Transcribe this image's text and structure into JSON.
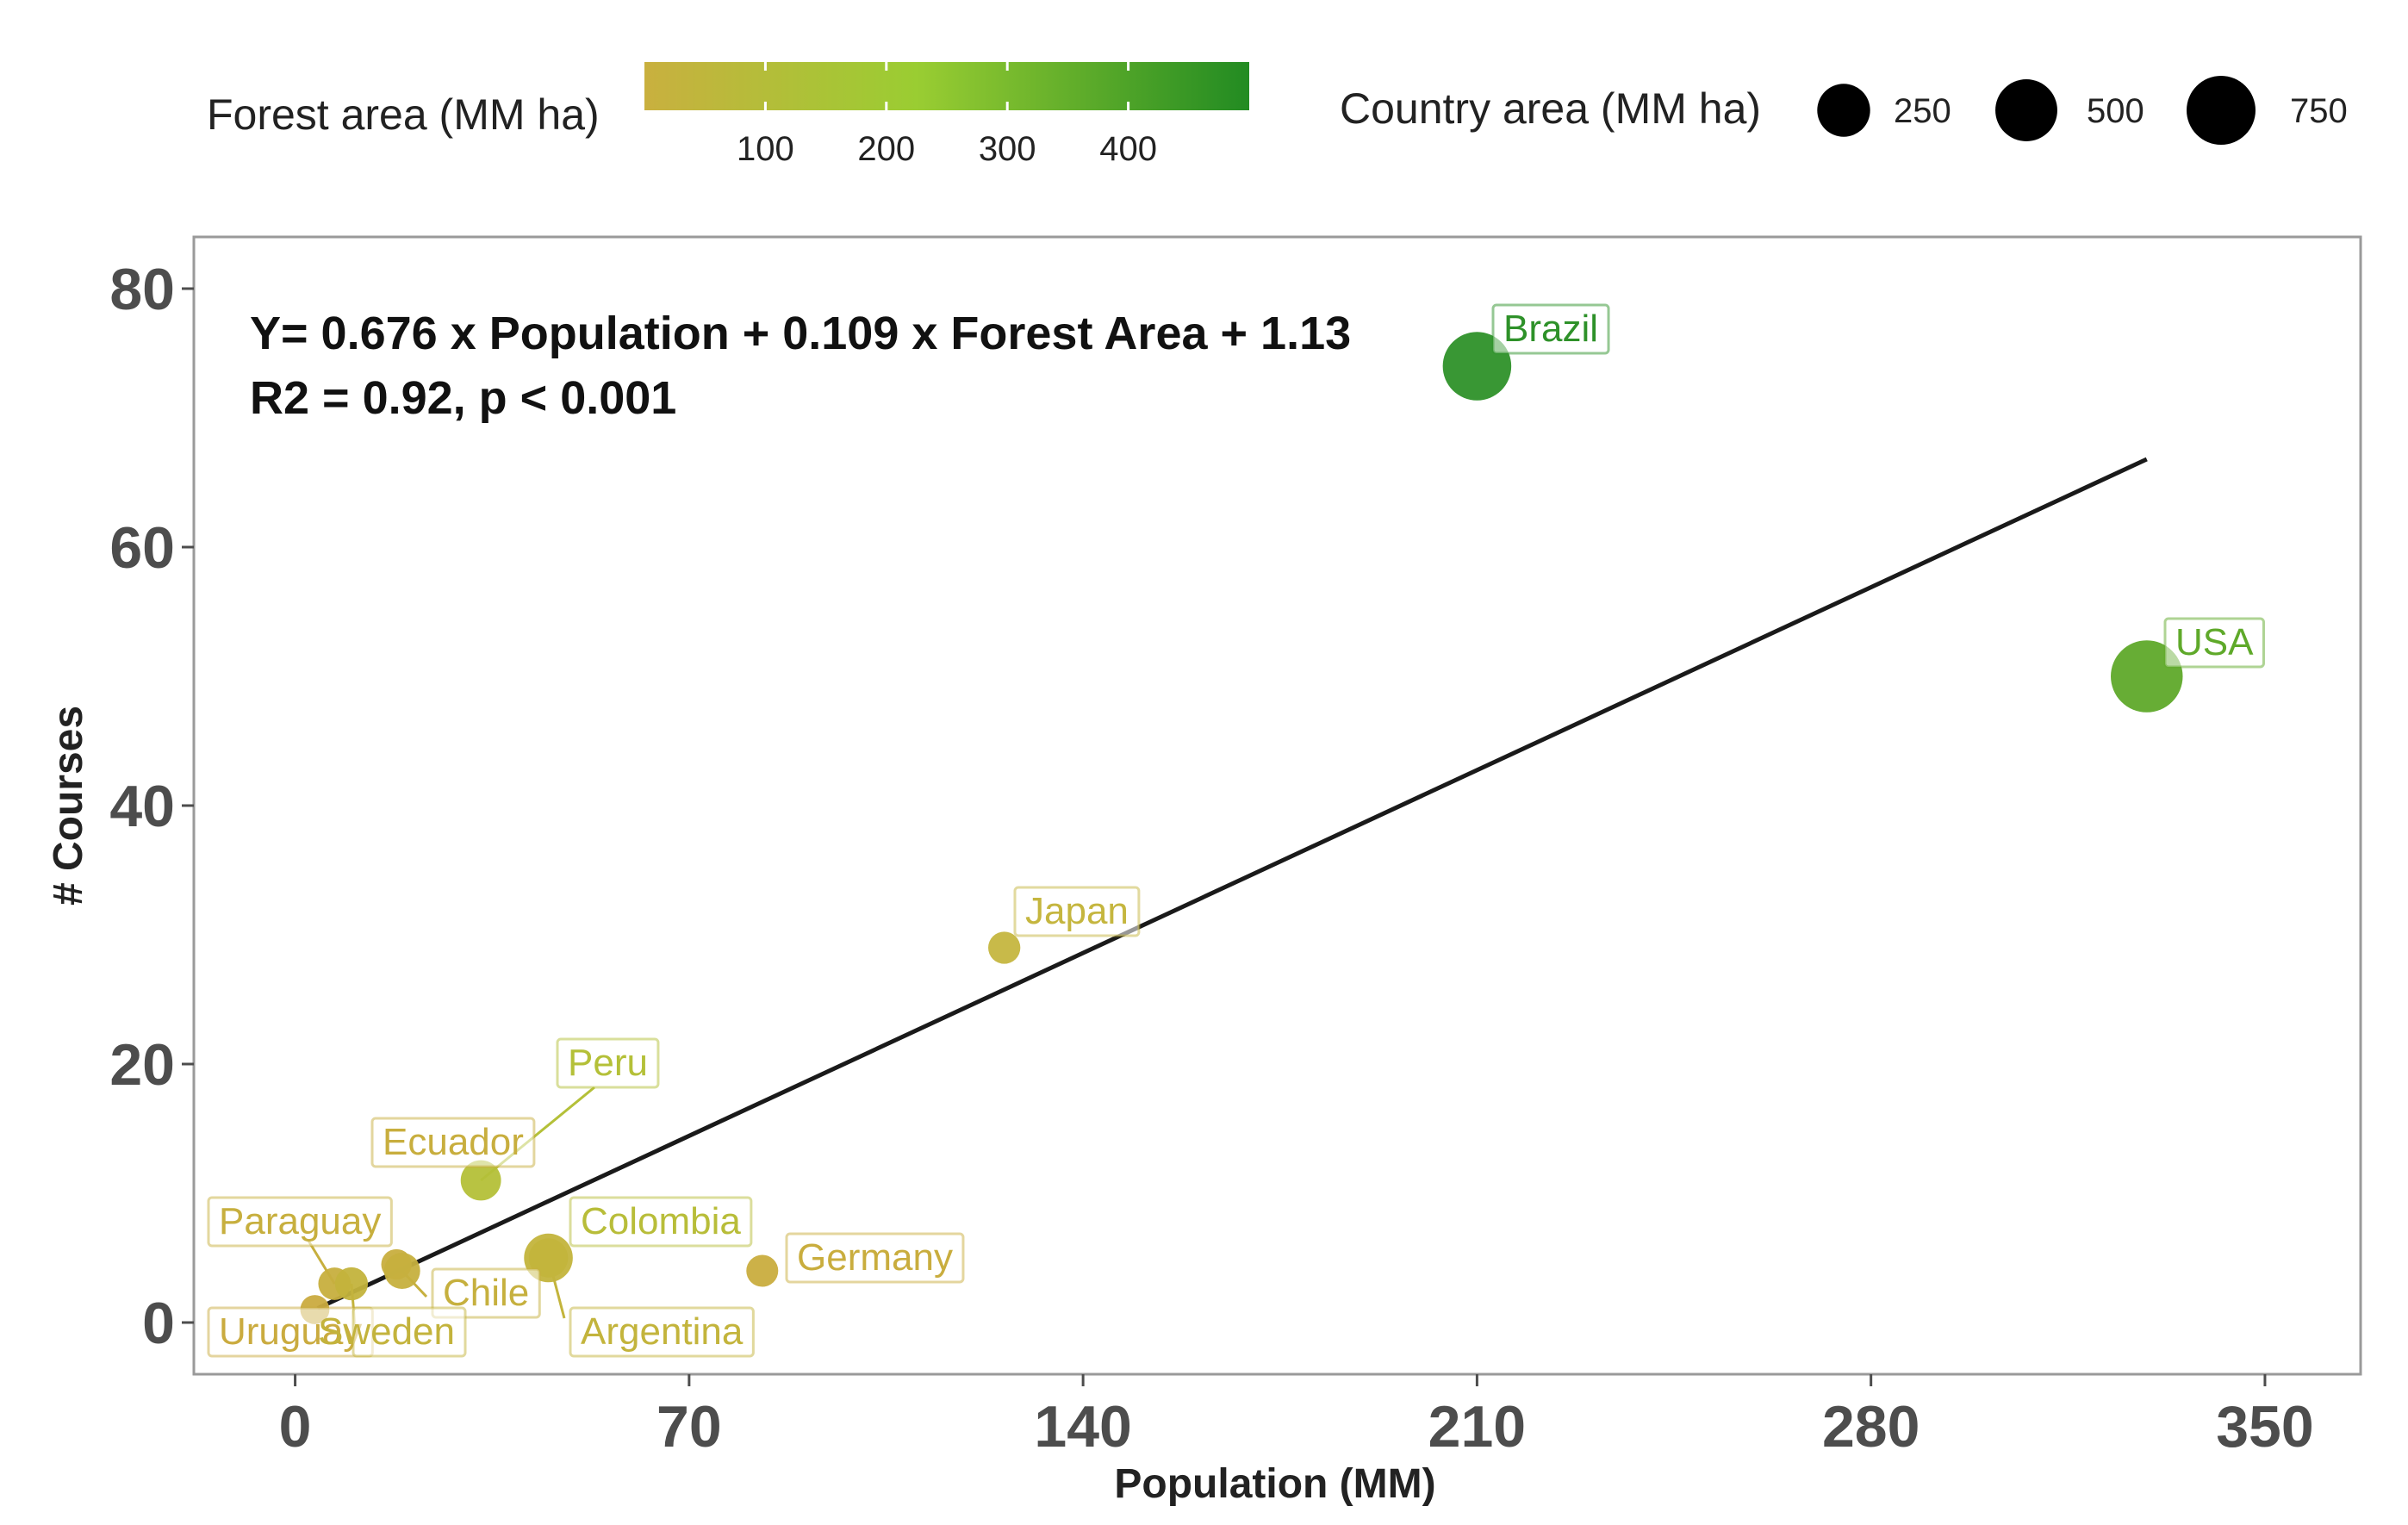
{
  "chart_data": {
    "type": "scatter",
    "title": "",
    "xlabel": "Population (MM)",
    "ylabel": "# Courses",
    "xlim": [
      -18,
      367
    ],
    "ylim": [
      -4,
      84
    ],
    "x_ticks": [
      0,
      70,
      140,
      210,
      280,
      350
    ],
    "y_ticks": [
      0,
      20,
      40,
      60,
      80
    ],
    "grid": false,
    "legend_position": "top",
    "equation": {
      "line1": "Y= 0.676 x Population + 0.109 x Forest Area + 1.13",
      "line2": "R2 = 0.92, p < 0.001"
    },
    "color_legend": {
      "title": "Forest area (MM ha)",
      "ticks": [
        100,
        200,
        300,
        400
      ],
      "range": [
        0,
        500
      ],
      "colors": [
        "#c9b03f",
        "#9acd32",
        "#228b22"
      ]
    },
    "size_legend": {
      "title": "Country area (MM ha)",
      "values": [
        250,
        500,
        750
      ]
    },
    "regression_line": {
      "x_start": 4,
      "y_start": 1.1,
      "x_end": 329,
      "y_end": 66.8,
      "color": "#1a1a1a"
    },
    "points": [
      {
        "label": "Brazil",
        "population": 210,
        "courses": 74,
        "forest_area": 497,
        "country_area": 851,
        "color": "#2e9129"
      },
      {
        "label": "USA",
        "population": 329,
        "courses": 50,
        "forest_area": 310,
        "country_area": 983,
        "color": "#5fa92a"
      },
      {
        "label": "Japan",
        "population": 126,
        "courses": 29,
        "forest_area": 25,
        "country_area": 38,
        "color": "#c5b63f"
      },
      {
        "label": "Peru",
        "population": 33,
        "courses": 11,
        "forest_area": 72,
        "country_area": 129,
        "color": "#b4c038"
      },
      {
        "label": "Ecuador",
        "population": 18,
        "courses": 4.5,
        "forest_area": 12,
        "country_area": 26,
        "color": "#c8ae3e"
      },
      {
        "label": "Colombia",
        "population": 45,
        "courses": 5,
        "forest_area": 59,
        "country_area": 114,
        "color": "#b8bd39"
      },
      {
        "label": "Germany",
        "population": 83,
        "courses": 4,
        "forest_area": 11,
        "country_area": 36,
        "color": "#c9ad3e"
      },
      {
        "label": "Paraguay",
        "population": 7,
        "courses": 3,
        "forest_area": 16,
        "country_area": 41,
        "color": "#c7af3e"
      },
      {
        "label": "Chile",
        "population": 19,
        "courses": 4,
        "forest_area": 18,
        "country_area": 76,
        "color": "#c6b03e"
      },
      {
        "label": "Argentina",
        "population": 45,
        "courses": 5,
        "forest_area": 29,
        "country_area": 278,
        "color": "#c3b43c"
      },
      {
        "label": "Uruguay",
        "population": 3.5,
        "courses": 1,
        "forest_area": 2,
        "country_area": 18,
        "color": "#caab3f"
      },
      {
        "label": "Sweden",
        "population": 10,
        "courses": 3,
        "forest_area": 28,
        "country_area": 45,
        "color": "#c3b33c"
      }
    ]
  }
}
